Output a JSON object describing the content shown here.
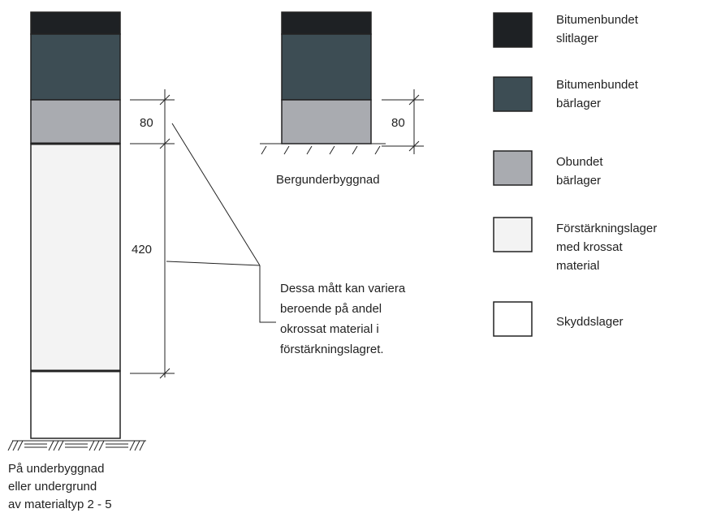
{
  "legend": [
    {
      "lines": [
        "Bitumenbundet",
        "slitlager"
      ]
    },
    {
      "lines": [
        "Bitumenbundet",
        "bärlager"
      ]
    },
    {
      "lines": [
        "Obundet",
        "bärlager"
      ]
    },
    {
      "lines": [
        "Förstärkningslager",
        "med krossat",
        "material"
      ]
    },
    {
      "lines": [
        "Skyddslager"
      ]
    }
  ],
  "left_column": {
    "dims": [
      "80",
      "420"
    ],
    "caption": [
      "På underbyggnad",
      "eller undergrund",
      "av materialtyp 2 - 5"
    ]
  },
  "right_column": {
    "dims": [
      "80"
    ],
    "caption": "Bergunderbyggnad"
  },
  "note": [
    "Dessa mått kan variera",
    "beroende på andel",
    "okrossat material i",
    "förstärkningslagret."
  ]
}
